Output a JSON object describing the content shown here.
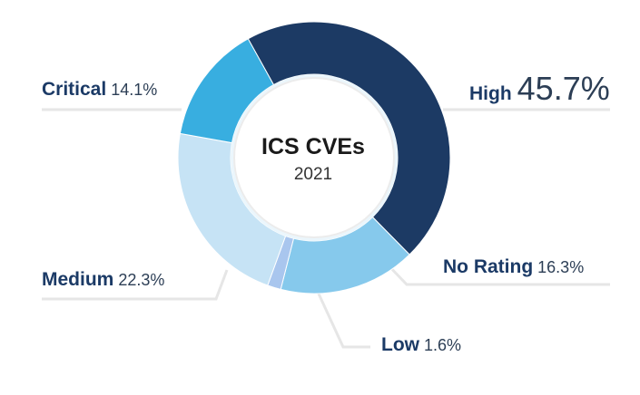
{
  "chart_data": {
    "type": "pie",
    "donut": true,
    "title": "ICS CVEs",
    "subtitle": "2021",
    "slices": [
      {
        "label": "High",
        "value": 45.7,
        "display": "45.7%",
        "color": "#1c3a64"
      },
      {
        "label": "No Rating",
        "value": 16.3,
        "display": "16.3%",
        "color": "#86c9ec"
      },
      {
        "label": "Low",
        "value": 1.6,
        "display": "1.6%",
        "color": "#a9c6ee"
      },
      {
        "label": "Medium",
        "value": 22.3,
        "display": "22.3%",
        "color": "#c6e3f5"
      },
      {
        "label": "Critical",
        "value": 14.1,
        "display": "14.1%",
        "color": "#38aee0"
      }
    ]
  }
}
